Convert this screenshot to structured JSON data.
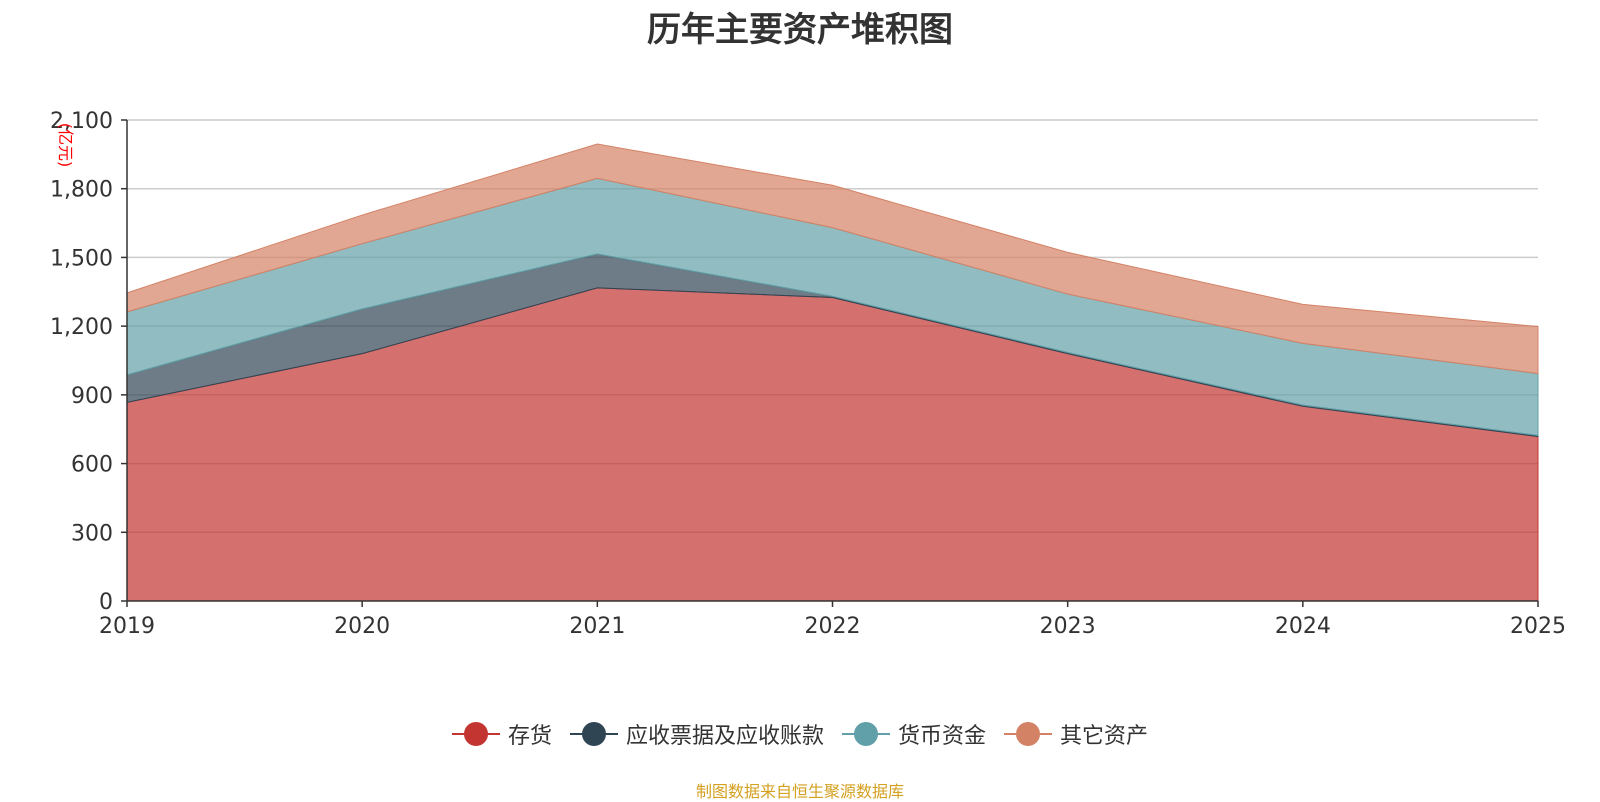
{
  "chart_data": {
    "type": "area",
    "stacked": true,
    "title": "历年主要资产堆积图",
    "unit_label": "(亿元)",
    "x": [
      "2019",
      "2020",
      "2021",
      "2022",
      "2023",
      "2024",
      "2025"
    ],
    "ylim": [
      0,
      2100
    ],
    "yticks": [
      0,
      300,
      600,
      900,
      1200,
      1500,
      1800,
      2100
    ],
    "ytick_labels": [
      "0",
      "300",
      "600",
      "900",
      "1,200",
      "1,500",
      "1,800",
      "2,100"
    ],
    "series": [
      {
        "name": "存货",
        "color": "#c23531",
        "values": [
          867,
          1080,
          1367,
          1325,
          1080,
          850,
          718
        ]
      },
      {
        "name": "应收票据及应收账款",
        "color": "#2f4554",
        "values": [
          120,
          195,
          148,
          5,
          5,
          5,
          5
        ]
      },
      {
        "name": "货币资金",
        "color": "#61a0a8",
        "values": [
          275,
          285,
          330,
          300,
          255,
          270,
          270
        ]
      },
      {
        "name": "其它资产",
        "color": "#d48265",
        "values": [
          83,
          125,
          150,
          185,
          182,
          170,
          205
        ]
      }
    ],
    "legend_position": "bottom-center",
    "grid": true
  },
  "source_text": "制图数据来自恒生聚源数据库"
}
